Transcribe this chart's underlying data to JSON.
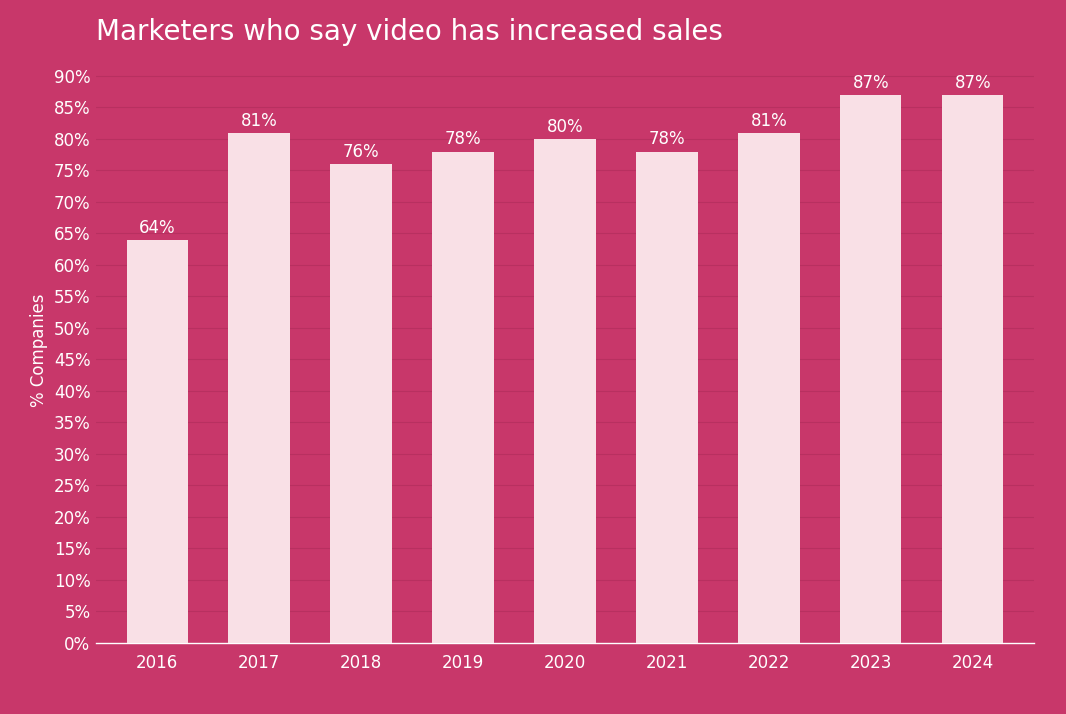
{
  "title": "Marketers who say video has increased sales",
  "categories": [
    "2016",
    "2017",
    "2018",
    "2019",
    "2020",
    "2021",
    "2022",
    "2023",
    "2024"
  ],
  "values": [
    64,
    81,
    76,
    78,
    80,
    78,
    81,
    87,
    87
  ],
  "bar_color": "#f9e0e6",
  "background_color": "#c8376a",
  "text_color": "#ffffff",
  "grid_color": "#b83060",
  "ylabel": "% Companies",
  "ytick_labels": [
    "0%",
    "5%",
    "10%",
    "15%",
    "20%",
    "25%",
    "30%",
    "35%",
    "40%",
    "45%",
    "50%",
    "55%",
    "60%",
    "65%",
    "70%",
    "75%",
    "80%",
    "85%",
    "90%"
  ],
  "ytick_values": [
    0,
    5,
    10,
    15,
    20,
    25,
    30,
    35,
    40,
    45,
    50,
    55,
    60,
    65,
    70,
    75,
    80,
    85,
    90
  ],
  "ylim": [
    0,
    93
  ],
  "title_fontsize": 20,
  "label_fontsize": 12,
  "tick_fontsize": 12,
  "bar_label_fontsize": 12
}
